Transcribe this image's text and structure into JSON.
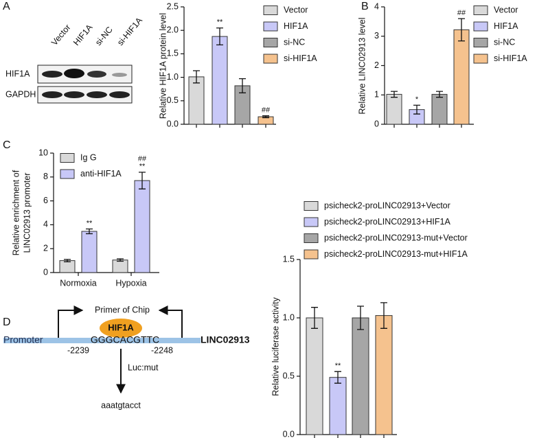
{
  "panels": [
    "A",
    "B",
    "C",
    "D"
  ],
  "blot": {
    "lanes": [
      "Vector",
      "HIF1A",
      "si-NC",
      "si-HIF1A"
    ],
    "rows": [
      "HIF1A",
      "GAPDH"
    ]
  },
  "diagram": {
    "primer": "Primer of Chip",
    "factor": "HIF1A",
    "promoter": "Promoter",
    "site": "GGGCACGTTC",
    "gene": "LINC02913",
    "start": "-2239",
    "end": "-2248",
    "mutation": "Luc:mut",
    "mutant_site": "aaatgtacct"
  },
  "chart_data": [
    {
      "type": "bar",
      "ylabel": "Relative HIF1A protein level",
      "ylim": [
        0,
        2.5
      ],
      "yticks": [
        {
          "value": 0,
          "label": "0.0"
        },
        0.5,
        {
          "value": 1,
          "label": "1.0"
        },
        1.5,
        {
          "value": 2,
          "label": "2.0"
        },
        2.5
      ],
      "series": [
        {
          "name": "Vector",
          "color": "#d9d9d9",
          "values": [
            1.01
          ],
          "errors": [
            0.13
          ]
        },
        {
          "name": "HIF1A",
          "color": "#c8c8f7",
          "values": [
            1.87
          ],
          "errors": [
            0.18
          ],
          "marks": [
            "**"
          ]
        },
        {
          "name": "si-NC",
          "color": "#a6a6a6",
          "values": [
            0.82
          ],
          "errors": [
            0.15
          ]
        },
        {
          "name": "si-HIF1A",
          "color": "#f5c28e",
          "values": [
            0.16
          ],
          "errors": [
            0.02
          ],
          "marks": [
            "##"
          ]
        }
      ]
    },
    {
      "type": "bar",
      "ylabel": "Relative LINC02913 level",
      "ylim": [
        0,
        4
      ],
      "yticks": [
        0,
        1,
        2,
        3,
        4
      ],
      "series": [
        {
          "name": "Vector",
          "color": "#d9d9d9",
          "values": [
            1.02
          ],
          "errors": [
            0.1
          ]
        },
        {
          "name": "HIF1A",
          "color": "#c8c8f7",
          "values": [
            0.5
          ],
          "errors": [
            0.15
          ],
          "marks": [
            "*"
          ]
        },
        {
          "name": "si-NC",
          "color": "#a6a6a6",
          "values": [
            1.02
          ],
          "errors": [
            0.1
          ]
        },
        {
          "name": "si-HIF1A",
          "color": "#f5c28e",
          "values": [
            3.22
          ],
          "errors": [
            0.38
          ],
          "marks": [
            "##"
          ]
        }
      ]
    },
    {
      "type": "bar",
      "ylabel": [
        "Relative enrichment of",
        "LINC02913 promoter"
      ],
      "ylim": [
        0,
        10
      ],
      "yticks": [
        0,
        2,
        4,
        6,
        8,
        10
      ],
      "categories": [
        "Normoxia",
        "Hypoxia"
      ],
      "series": [
        {
          "name": "Ig G",
          "color": "#d9d9d9",
          "values": [
            1.0,
            1.05
          ],
          "errors": [
            0.1,
            0.1
          ]
        },
        {
          "name": "anti-HIF1A",
          "color": "#c8c8f7",
          "values": [
            3.45,
            7.7
          ],
          "errors": [
            0.2,
            0.7
          ],
          "marks": [
            "**",
            "**"
          ],
          "marks_upper": [
            null,
            "##"
          ]
        }
      ]
    },
    {
      "type": "bar",
      "ylabel": "Relative luciferase activity",
      "ylim": [
        0,
        1.5
      ],
      "yticks": [
        {
          "value": 0,
          "label": "0.0"
        },
        0.5,
        {
          "value": 1,
          "label": "1.0"
        },
        1.5
      ],
      "series": [
        {
          "name": "psicheck2-proLINC02913+Vector",
          "color": "#d9d9d9",
          "values": [
            1.0
          ],
          "errors": [
            0.09
          ]
        },
        {
          "name": "psicheck2-proLINC02913+HIF1A",
          "color": "#c8c8f7",
          "values": [
            0.49
          ],
          "errors": [
            0.05
          ],
          "marks": [
            "**"
          ]
        },
        {
          "name": "psicheck2-proLINC02913-mut+Vector",
          "color": "#a6a6a6",
          "values": [
            1.0
          ],
          "errors": [
            0.1
          ]
        },
        {
          "name": "psicheck2-proLINC02913-mut+HIF1A",
          "color": "#f5c28e",
          "values": [
            1.02
          ],
          "errors": [
            0.11
          ]
        }
      ]
    }
  ]
}
